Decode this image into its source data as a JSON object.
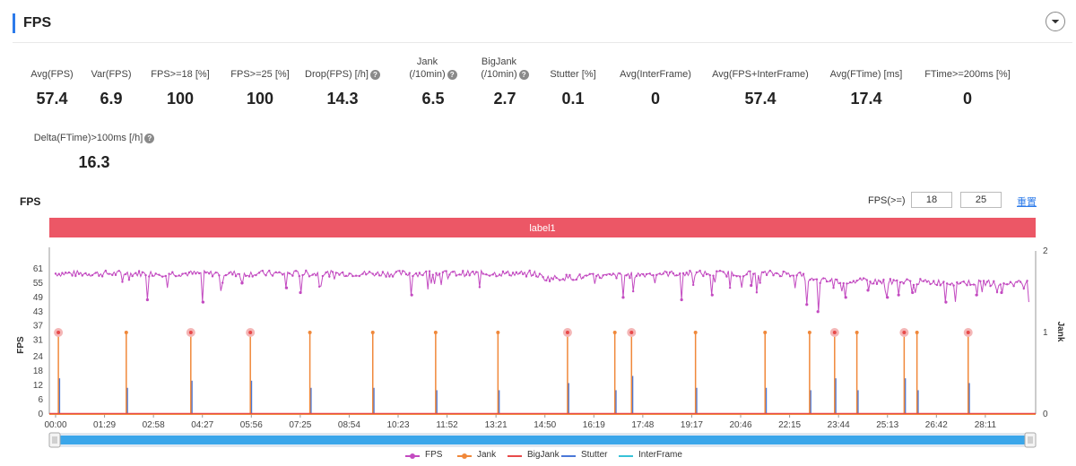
{
  "section": {
    "title": "FPS"
  },
  "metrics": [
    {
      "label": "Avg(FPS)",
      "value": "57.4",
      "help": false
    },
    {
      "label": "Var(FPS)",
      "value": "6.9",
      "help": false
    },
    {
      "label": "FPS>=18 [%]",
      "value": "100",
      "help": false
    },
    {
      "label": "FPS>=25 [%]",
      "value": "100",
      "help": false
    },
    {
      "label": "Drop(FPS) [/h]",
      "value": "14.3",
      "help": true
    },
    {
      "label": "Jank\n(/10min)",
      "value": "6.5",
      "help": true
    },
    {
      "label": "BigJank\n(/10min)",
      "value": "2.7",
      "help": true
    },
    {
      "label": "Stutter [%]",
      "value": "0.1",
      "help": false
    },
    {
      "label": "Avg(InterFrame)",
      "value": "0",
      "help": false
    },
    {
      "label": "Avg(FPS+InterFrame)",
      "value": "57.4",
      "help": false
    },
    {
      "label": "Avg(FTime) [ms]",
      "value": "17.4",
      "help": false
    },
    {
      "label": "FTime>=200ms [%]",
      "value": "0",
      "help": false
    },
    {
      "label": "Delta(FTime)>100ms [/h]",
      "value": "16.3",
      "help": true
    }
  ],
  "chart_header": {
    "title": "FPS",
    "filter_label": "FPS(>=)",
    "threshold_low": "18",
    "threshold_high": "25",
    "reset_label": "重置"
  },
  "chart_data": {
    "type": "line",
    "label_band": {
      "text": "label1",
      "color": "#ec5766"
    },
    "x_ticks": [
      "00:00",
      "01:29",
      "02:58",
      "04:27",
      "05:56",
      "07:25",
      "08:54",
      "10:23",
      "11:52",
      "13:21",
      "14:50",
      "16:19",
      "17:48",
      "19:17",
      "20:46",
      "22:15",
      "23:44",
      "25:13",
      "26:42",
      "28:11"
    ],
    "x_range_seconds": [
      0,
      1750
    ],
    "y_left": {
      "label": "FPS",
      "ticks": [
        0,
        6,
        12,
        18,
        24,
        31,
        37,
        43,
        49,
        55,
        61
      ],
      "range": [
        0,
        67
      ]
    },
    "y_right": {
      "label": "Jank",
      "ticks": [
        0,
        1,
        2
      ],
      "range": [
        0,
        2
      ]
    },
    "fps_profile": [
      {
        "t": 0,
        "fps": 59
      },
      {
        "t": 860,
        "fps": 59
      },
      {
        "t": 880,
        "fps": 57
      },
      {
        "t": 1000,
        "fps": 58
      },
      {
        "t": 1080,
        "fps": 59
      },
      {
        "t": 1330,
        "fps": 59
      },
      {
        "t": 1360,
        "fps": 56
      },
      {
        "t": 1700,
        "fps": 55
      },
      {
        "t": 1750,
        "fps": 55
      }
    ],
    "fps_dips": [
      {
        "t": 165,
        "fps": 48
      },
      {
        "t": 265,
        "fps": 47
      },
      {
        "t": 335,
        "fps": 55
      },
      {
        "t": 415,
        "fps": 53
      },
      {
        "t": 440,
        "fps": 51
      },
      {
        "t": 640,
        "fps": 50
      },
      {
        "t": 1020,
        "fps": 49
      },
      {
        "t": 1125,
        "fps": 48
      },
      {
        "t": 1180,
        "fps": 50
      },
      {
        "t": 1250,
        "fps": 54
      },
      {
        "t": 1350,
        "fps": 46
      },
      {
        "t": 1370,
        "fps": 43
      },
      {
        "t": 1420,
        "fps": 49
      },
      {
        "t": 1460,
        "fps": 52
      },
      {
        "t": 1495,
        "fps": 49
      },
      {
        "t": 1515,
        "fps": 50
      },
      {
        "t": 1540,
        "fps": 51
      },
      {
        "t": 1600,
        "fps": 47
      },
      {
        "t": 1655,
        "fps": 50
      },
      {
        "t": 1700,
        "fps": 51
      }
    ],
    "jank_events": [
      {
        "t": 5,
        "big": true,
        "stutter": 15
      },
      {
        "t": 127,
        "big": false,
        "stutter": 11
      },
      {
        "t": 243,
        "big": true,
        "stutter": 14
      },
      {
        "t": 350,
        "big": true,
        "stutter": 14
      },
      {
        "t": 457,
        "big": false,
        "stutter": 11
      },
      {
        "t": 570,
        "big": false,
        "stutter": 11
      },
      {
        "t": 683,
        "big": false,
        "stutter": 10
      },
      {
        "t": 795,
        "big": false,
        "stutter": 10
      },
      {
        "t": 920,
        "big": true,
        "stutter": 13
      },
      {
        "t": 1005,
        "big": false,
        "stutter": 10
      },
      {
        "t": 1035,
        "big": true,
        "stutter": 16
      },
      {
        "t": 1150,
        "big": false,
        "stutter": 11
      },
      {
        "t": 1275,
        "big": false,
        "stutter": 11
      },
      {
        "t": 1355,
        "big": false,
        "stutter": 10
      },
      {
        "t": 1400,
        "big": true,
        "stutter": 15
      },
      {
        "t": 1440,
        "big": false,
        "stutter": 10
      },
      {
        "t": 1525,
        "big": true,
        "stutter": 15
      },
      {
        "t": 1548,
        "big": false,
        "stutter": 10
      },
      {
        "t": 1640,
        "big": true,
        "stutter": 13
      }
    ],
    "series": [
      {
        "name": "FPS",
        "color": "#c34bc1"
      },
      {
        "name": "Jank",
        "color": "#f0883a"
      },
      {
        "name": "BigJank",
        "color": "#e84a4a"
      },
      {
        "name": "Stutter",
        "color": "#4a78d8"
      },
      {
        "name": "InterFrame",
        "color": "#37c2d8"
      }
    ],
    "grid": true,
    "legend_position": "bottom-center"
  }
}
